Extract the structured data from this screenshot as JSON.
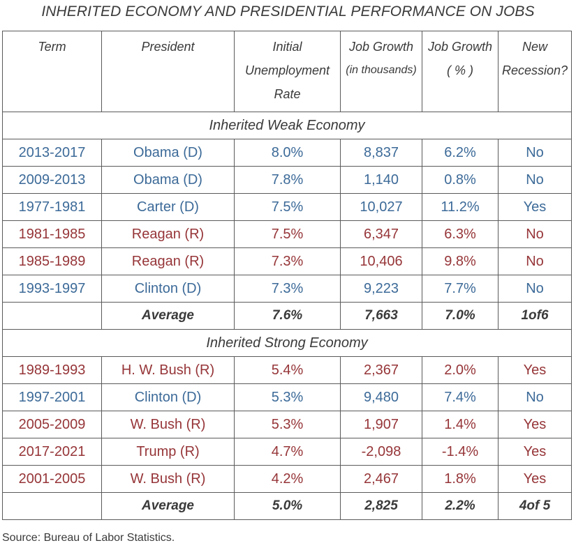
{
  "title": "INHERITED ECONOMY AND PRESIDENTIAL PERFORMANCE ON JOBS",
  "headers": {
    "term": [
      "Term"
    ],
    "president": [
      "President"
    ],
    "unemployment": [
      "Initial",
      "Unemployment",
      "Rate"
    ],
    "job_growth_abs": [
      "Job Growth",
      "(in thousands)"
    ],
    "job_growth_pct": [
      "Job Growth",
      "( % )"
    ],
    "recession": [
      "New",
      "Recession?"
    ]
  },
  "sections": [
    {
      "label": "Inherited Weak Economy",
      "rows": [
        {
          "party": "D",
          "term": "2013-2017",
          "president": "Obama (D)",
          "unemployment": "8.0%",
          "job_growth": "8,837",
          "job_growth_pct": "6.2%",
          "recession": "No"
        },
        {
          "party": "D",
          "term": "2009-2013",
          "president": "Obama (D)",
          "unemployment": "7.8%",
          "job_growth": "1,140",
          "job_growth_pct": "0.8%",
          "recession": "No"
        },
        {
          "party": "D",
          "term": "1977-1981",
          "president": "Carter (D)",
          "unemployment": "7.5%",
          "job_growth": "10,027",
          "job_growth_pct": "11.2%",
          "recession": "Yes"
        },
        {
          "party": "R",
          "term": "1981-1985",
          "president": "Reagan (R)",
          "unemployment": "7.5%",
          "job_growth": "6,347",
          "job_growth_pct": "6.3%",
          "recession": "No"
        },
        {
          "party": "R",
          "term": "1985-1989",
          "president": "Reagan (R)",
          "unemployment": "7.3%",
          "job_growth": "10,406",
          "job_growth_pct": "9.8%",
          "recession": "No"
        },
        {
          "party": "D",
          "term": "1993-1997",
          "president": "Clinton (D)",
          "unemployment": "7.3%",
          "job_growth": "9,223",
          "job_growth_pct": "7.7%",
          "recession": "No"
        }
      ],
      "average": {
        "label": "Average",
        "unemployment": "7.6%",
        "job_growth": "7,663",
        "job_growth_pct": "7.0%",
        "recession": "1of6"
      }
    },
    {
      "label": "Inherited Strong Economy",
      "rows": [
        {
          "party": "R",
          "term": "1989-1993",
          "president": "H. W. Bush (R)",
          "unemployment": "5.4%",
          "job_growth": "2,367",
          "job_growth_pct": "2.0%",
          "recession": "Yes"
        },
        {
          "party": "D",
          "term": "1997-2001",
          "president": "Clinton (D)",
          "unemployment": "5.3%",
          "job_growth": "9,480",
          "job_growth_pct": "7.4%",
          "recession": "No"
        },
        {
          "party": "R",
          "term": "2005-2009",
          "president": "W. Bush (R)",
          "unemployment": "5.3%",
          "job_growth": "1,907",
          "job_growth_pct": "1.4%",
          "recession": "Yes"
        },
        {
          "party": "R",
          "term": "2017-2021",
          "president": "Trump (R)",
          "unemployment": "4.7%",
          "job_growth": "-2,098",
          "job_growth_pct": "-1.4%",
          "recession": "Yes"
        },
        {
          "party": "R",
          "term": "2001-2005",
          "president": "W. Bush (R)",
          "unemployment": "4.2%",
          "job_growth": "2,467",
          "job_growth_pct": "1.8%",
          "recession": "Yes"
        }
      ],
      "average": {
        "label": "Average",
        "unemployment": "5.0%",
        "job_growth": "2,825",
        "job_growth_pct": "2.2%",
        "recession": "4of 5"
      }
    }
  ],
  "colors": {
    "democrat": "#3c6a98",
    "republican": "#963538",
    "text": "#3a3a3a",
    "border": "#5a5a5a"
  },
  "source": "Source: Bureau of Labor Statistics."
}
